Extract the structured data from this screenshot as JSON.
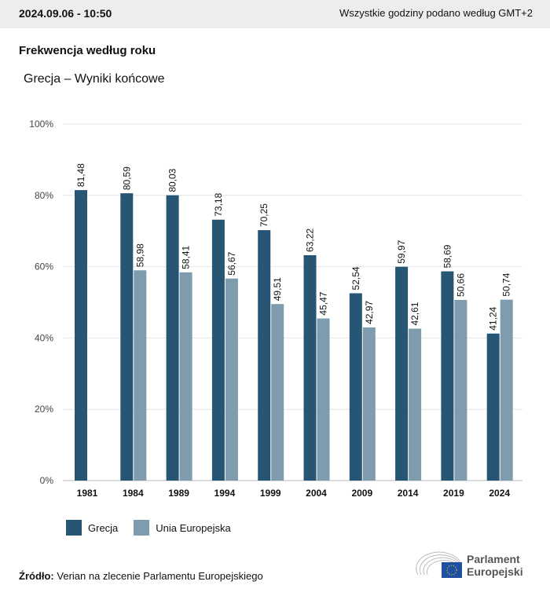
{
  "header": {
    "date": "2024.09.06 - 10:50",
    "timezone": "Wszystkie godziny podano według GMT+2"
  },
  "title": "Frekwencja według roku",
  "subtitle": "Grecja – Wyniki końcowe",
  "chart_data": {
    "type": "bar",
    "title": "Frekwencja według roku",
    "subtitle": "Grecja – Wyniki końcowe",
    "categories": [
      "1981",
      "1984",
      "1989",
      "1994",
      "1999",
      "2004",
      "2009",
      "2014",
      "2019",
      "2024"
    ],
    "series": [
      {
        "name": "Grecja",
        "color": "#265673",
        "values": [
          81.48,
          80.59,
          80.03,
          73.18,
          70.25,
          63.22,
          52.54,
          59.97,
          58.69,
          41.24
        ],
        "labels": [
          "81,48",
          "80,59",
          "80,03",
          "73,18",
          "70,25",
          "63,22",
          "52,54",
          "59,97",
          "58,69",
          "41,24"
        ]
      },
      {
        "name": "Unia Europejska",
        "color": "#7f9bae",
        "values": [
          null,
          58.98,
          58.41,
          56.67,
          49.51,
          45.47,
          42.97,
          42.61,
          50.66,
          50.74
        ],
        "labels": [
          null,
          "58,98",
          "58,41",
          "56,67",
          "49,51",
          "45,47",
          "42,97",
          "42,61",
          "50,66",
          "50,74"
        ]
      }
    ],
    "ylim": [
      0,
      100
    ],
    "yticks": [
      "0%",
      "20%",
      "40%",
      "60%",
      "80%",
      "100%"
    ],
    "grid": true,
    "legend": "bottom-left"
  },
  "legend": [
    "Grecja",
    "Unia Europejska"
  ],
  "source": {
    "label": "Źródło:",
    "text": "Verian na zlecenie Parlamentu Europejskiego"
  },
  "logo": {
    "line1": "Parlament",
    "line2": "Europejski"
  }
}
